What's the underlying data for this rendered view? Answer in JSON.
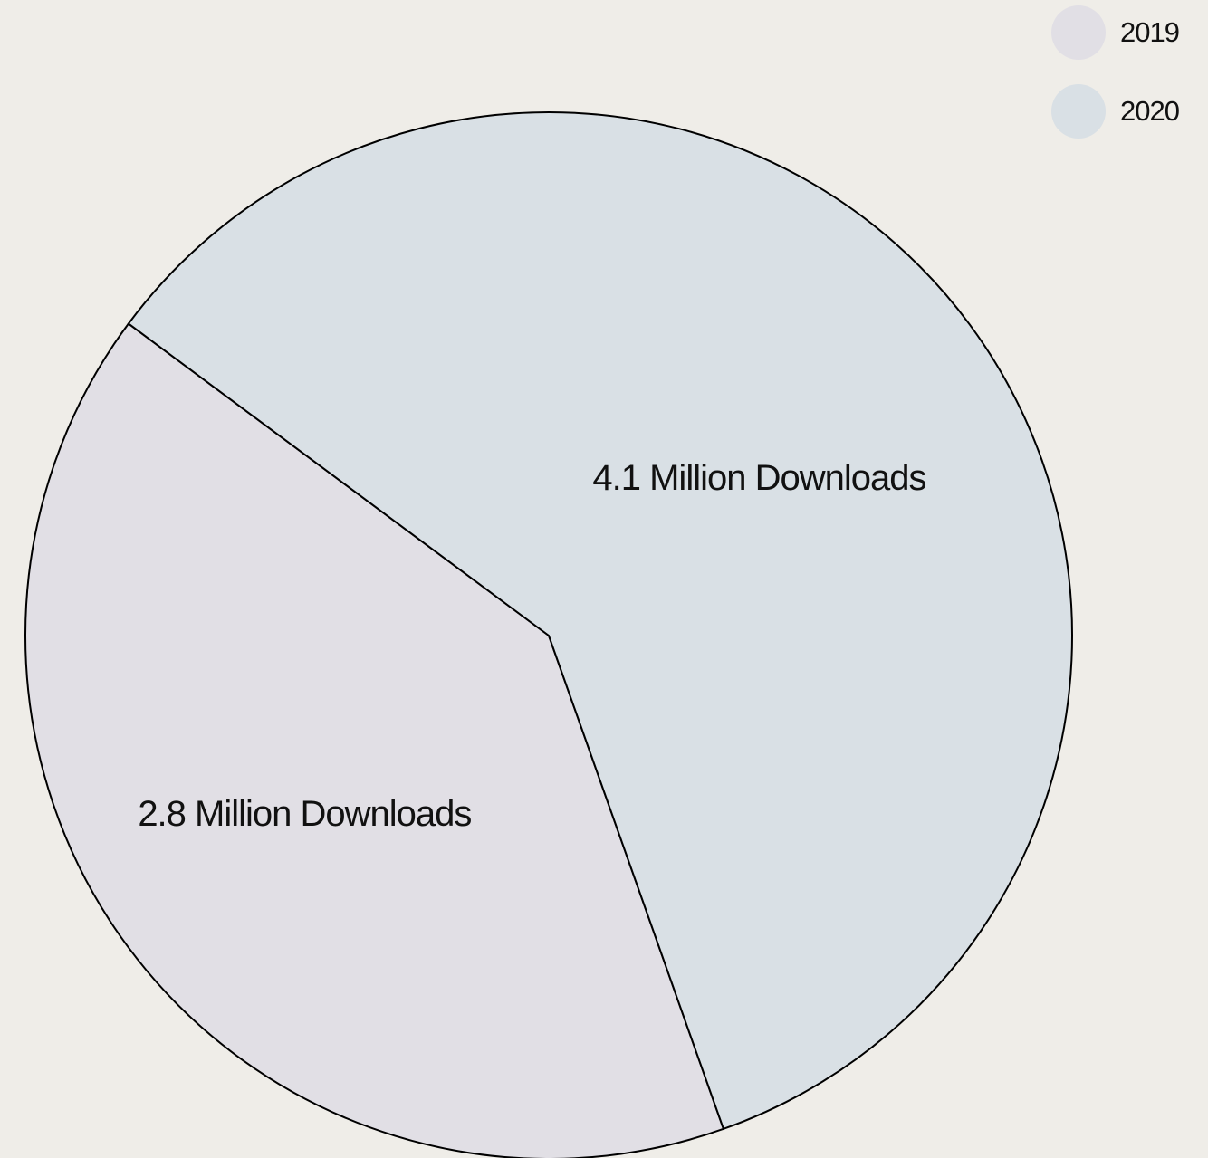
{
  "chart_data": {
    "type": "pie",
    "slices": [
      {
        "name": "2019",
        "value": 2.8,
        "label": "2.8 Million Downloads",
        "color": "#e1dfe5"
      },
      {
        "name": "2020",
        "value": 4.1,
        "label": "4.1 Million Downloads",
        "color": "#d9e0e5"
      }
    ],
    "legend": {
      "placement": "top-right"
    }
  },
  "legend_items": [
    {
      "label": "2019",
      "color": "#e1dfe5"
    },
    {
      "label": "2020",
      "color": "#d9e0e5"
    }
  ]
}
